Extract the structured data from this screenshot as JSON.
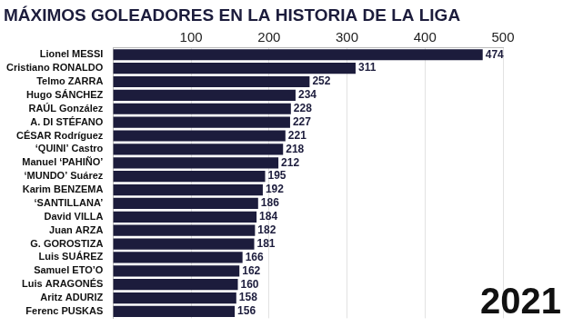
{
  "chart_data": {
    "type": "bar",
    "orientation": "horizontal",
    "title": "MÁXIMOS GOLEADORES EN LA HISTORIA DE LA LIGA",
    "categories": [
      "Lionel MESSI",
      "Cristiano RONALDO",
      "Telmo ZARRA",
      "Hugo SÁNCHEZ",
      "RAÚL González",
      "A. DI STÉFANO",
      "CÉSAR Rodríguez",
      "‘QUINI’ Castro",
      "Manuel ‘PAHIÑO’",
      "‘MUNDO’ Suárez",
      "Karim BENZEMA",
      "‘SANTILLANA’",
      "David VILLA",
      "Juan ARZA",
      "G. GOROSTIZA",
      "Luis SUÁREZ",
      "Samuel ETO’O",
      "Luis ARAGONÉS",
      "Aritz ADURIZ",
      "Ferenc PUSKAS"
    ],
    "values": [
      474,
      311,
      252,
      234,
      228,
      227,
      221,
      218,
      212,
      195,
      192,
      186,
      184,
      182,
      181,
      166,
      162,
      160,
      158,
      156
    ],
    "color": "#1c1c3c",
    "xlim": [
      0,
      500
    ],
    "xticks": [
      100,
      200,
      300,
      400,
      500
    ],
    "grid": true,
    "data_labels": true,
    "annotations": [
      "2021"
    ]
  }
}
